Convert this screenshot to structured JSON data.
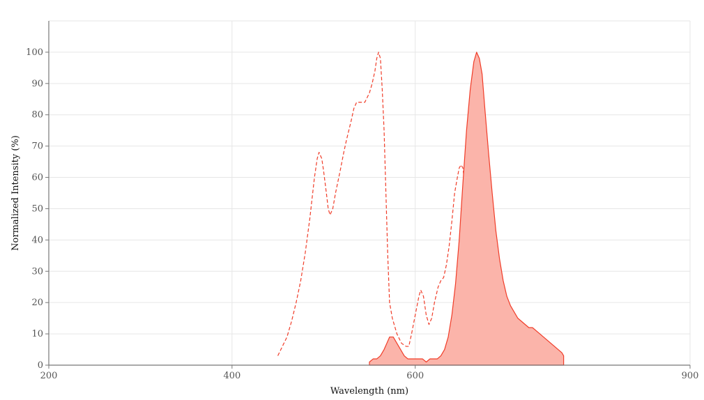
{
  "chart_data": {
    "type": "area",
    "xlabel": "Wavelength (nm)",
    "ylabel": "Normalized Intensity (%)",
    "xlim": [
      200,
      900
    ],
    "ylim": [
      0,
      110
    ],
    "grid": true,
    "legend": "none",
    "x_ticks": [
      200,
      400,
      600,
      900
    ],
    "y_ticks": [
      0,
      10,
      20,
      30,
      40,
      50,
      60,
      70,
      80,
      90,
      100
    ],
    "series": [
      {
        "style": "dashed-line",
        "color": "#f03c28",
        "points": [
          [
            450,
            3
          ],
          [
            455,
            6
          ],
          [
            460,
            9
          ],
          [
            465,
            14
          ],
          [
            470,
            20
          ],
          [
            475,
            27
          ],
          [
            480,
            36
          ],
          [
            485,
            47
          ],
          [
            490,
            60
          ],
          [
            493,
            66
          ],
          [
            495,
            68
          ],
          [
            498,
            66
          ],
          [
            500,
            62
          ],
          [
            503,
            55
          ],
          [
            505,
            50
          ],
          [
            507,
            48
          ],
          [
            510,
            50
          ],
          [
            513,
            55
          ],
          [
            518,
            62
          ],
          [
            522,
            68
          ],
          [
            525,
            72
          ],
          [
            530,
            78
          ],
          [
            533,
            82
          ],
          [
            536,
            84
          ],
          [
            540,
            84
          ],
          [
            545,
            84
          ],
          [
            550,
            87
          ],
          [
            553,
            90
          ],
          [
            556,
            94
          ],
          [
            558,
            98
          ],
          [
            560,
            100
          ],
          [
            562,
            98
          ],
          [
            564,
            88
          ],
          [
            566,
            75
          ],
          [
            568,
            55
          ],
          [
            570,
            35
          ],
          [
            572,
            20
          ],
          [
            575,
            15
          ],
          [
            580,
            10
          ],
          [
            585,
            7
          ],
          [
            590,
            6
          ],
          [
            593,
            6
          ],
          [
            596,
            10
          ],
          [
            600,
            16
          ],
          [
            604,
            22
          ],
          [
            606,
            24
          ],
          [
            609,
            22
          ],
          [
            612,
            16
          ],
          [
            615,
            13
          ],
          [
            618,
            15
          ],
          [
            621,
            20
          ],
          [
            625,
            25
          ],
          [
            628,
            27
          ],
          [
            631,
            28
          ],
          [
            634,
            32
          ],
          [
            637,
            38
          ],
          [
            640,
            46
          ],
          [
            643,
            55
          ],
          [
            646,
            60
          ],
          [
            648,
            63
          ],
          [
            650,
            64
          ],
          [
            652,
            63
          ],
          [
            654,
            58
          ],
          [
            657,
            50
          ],
          [
            660,
            42
          ],
          [
            663,
            34
          ],
          [
            666,
            27
          ],
          [
            670,
            20
          ],
          [
            674,
            14
          ],
          [
            678,
            10
          ],
          [
            682,
            7
          ],
          [
            686,
            5
          ],
          [
            690,
            3
          ],
          [
            694,
            1
          ],
          [
            696,
            0
          ]
        ]
      },
      {
        "style": "filled-area",
        "color": "#f03c28",
        "fill": "#fbb4aa",
        "points": [
          [
            550,
            0
          ],
          [
            550,
            1
          ],
          [
            554,
            2
          ],
          [
            558,
            2
          ],
          [
            562,
            3
          ],
          [
            566,
            5
          ],
          [
            569,
            7
          ],
          [
            572,
            9
          ],
          [
            576,
            9
          ],
          [
            580,
            7
          ],
          [
            584,
            5
          ],
          [
            588,
            3
          ],
          [
            592,
            2
          ],
          [
            596,
            2
          ],
          [
            600,
            2
          ],
          [
            604,
            2
          ],
          [
            608,
            2
          ],
          [
            612,
            1
          ],
          [
            616,
            2
          ],
          [
            620,
            2
          ],
          [
            624,
            2
          ],
          [
            628,
            3
          ],
          [
            632,
            5
          ],
          [
            636,
            9
          ],
          [
            640,
            16
          ],
          [
            644,
            26
          ],
          [
            648,
            40
          ],
          [
            652,
            58
          ],
          [
            656,
            75
          ],
          [
            660,
            88
          ],
          [
            664,
            97
          ],
          [
            667,
            100
          ],
          [
            670,
            98
          ],
          [
            673,
            93
          ],
          [
            676,
            82
          ],
          [
            680,
            68
          ],
          [
            684,
            55
          ],
          [
            688,
            43
          ],
          [
            692,
            34
          ],
          [
            696,
            27
          ],
          [
            700,
            22
          ],
          [
            704,
            19
          ],
          [
            708,
            17
          ],
          [
            712,
            15
          ],
          [
            716,
            14
          ],
          [
            720,
            13
          ],
          [
            724,
            12
          ],
          [
            728,
            12
          ],
          [
            732,
            11
          ],
          [
            736,
            10
          ],
          [
            740,
            9
          ],
          [
            744,
            8
          ],
          [
            748,
            7
          ],
          [
            752,
            6
          ],
          [
            756,
            5
          ],
          [
            760,
            4
          ],
          [
            762,
            3
          ],
          [
            762,
            0
          ]
        ]
      }
    ]
  }
}
